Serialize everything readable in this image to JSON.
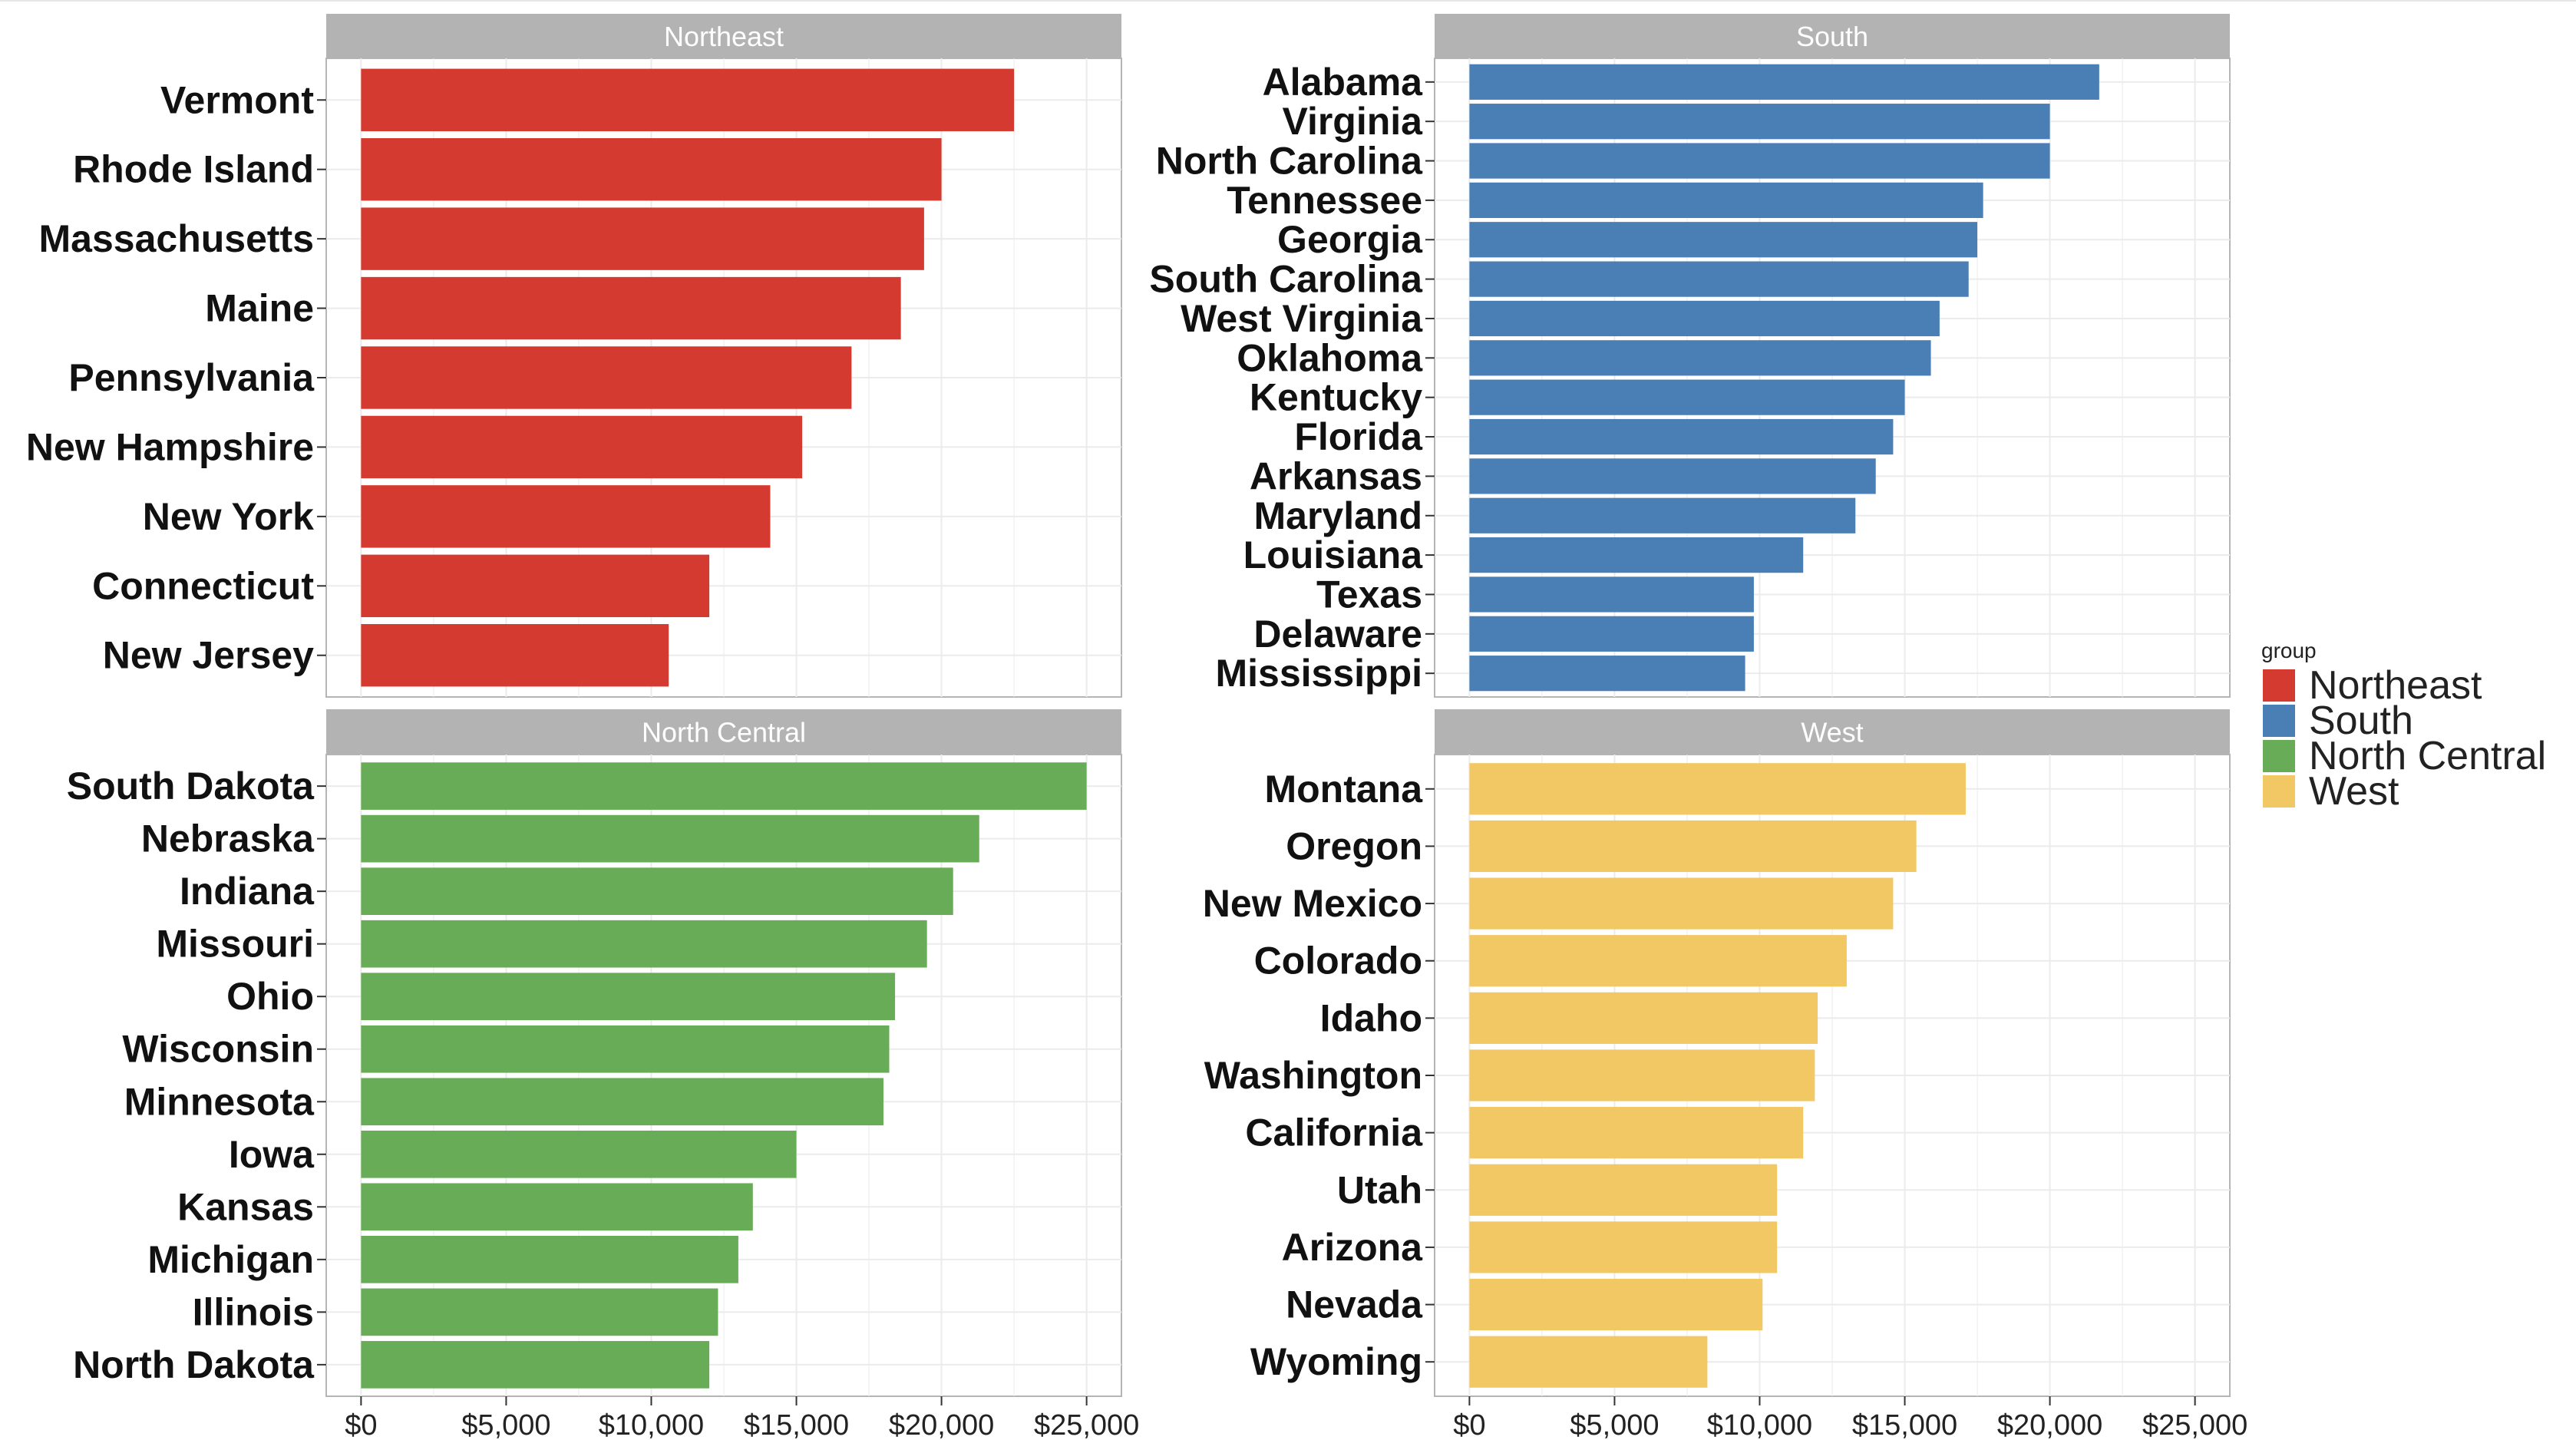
{
  "chart_data": {
    "type": "bar",
    "orientation": "horizontal",
    "facets": [
      "Northeast",
      "South",
      "North Central",
      "West"
    ],
    "x_ticks": [
      "$0",
      "$5,000",
      "$10,000",
      "$15,000",
      "$20,000",
      "$25,000"
    ],
    "x_tick_values": [
      0,
      5000,
      10000,
      15000,
      20000,
      25000
    ],
    "xlim": [
      -1200,
      26200
    ],
    "grid": true,
    "legend": {
      "title": "group",
      "position": "right",
      "items": [
        {
          "label": "Northeast",
          "color": "#d43a2f"
        },
        {
          "label": "South",
          "color": "#4a7fb5"
        },
        {
          "label": "North Central",
          "color": "#68ac57"
        },
        {
          "label": "West",
          "color": "#f2c864"
        }
      ]
    },
    "panels": [
      {
        "title": "Northeast",
        "color": "#d43a2f",
        "categories": [
          "Vermont",
          "Rhode Island",
          "Massachusetts",
          "Maine",
          "Pennsylvania",
          "New Hampshire",
          "New York",
          "Connecticut",
          "New Jersey"
        ],
        "values": [
          22500,
          20000,
          19400,
          18600,
          16900,
          15200,
          14100,
          12000,
          10600
        ]
      },
      {
        "title": "South",
        "color": "#4a7fb5",
        "categories": [
          "Alabama",
          "Virginia",
          "North Carolina",
          "Tennessee",
          "Georgia",
          "South Carolina",
          "West Virginia",
          "Oklahoma",
          "Kentucky",
          "Florida",
          "Arkansas",
          "Maryland",
          "Louisiana",
          "Texas",
          "Delaware",
          "Mississippi"
        ],
        "values": [
          21700,
          20000,
          20000,
          17700,
          17500,
          17200,
          16200,
          15900,
          15000,
          14600,
          14000,
          13300,
          11500,
          9800,
          9800,
          9500
        ]
      },
      {
        "title": "North Central",
        "color": "#68ac57",
        "categories": [
          "South Dakota",
          "Nebraska",
          "Indiana",
          "Missouri",
          "Ohio",
          "Wisconsin",
          "Minnesota",
          "Iowa",
          "Kansas",
          "Michigan",
          "Illinois",
          "North Dakota"
        ],
        "values": [
          25000,
          21300,
          20400,
          19500,
          18400,
          18200,
          18000,
          15000,
          13500,
          13000,
          12300,
          12000
        ]
      },
      {
        "title": "West",
        "color": "#f2c864",
        "categories": [
          "Montana",
          "Oregon",
          "New Mexico",
          "Colorado",
          "Idaho",
          "Washington",
          "California",
          "Utah",
          "Arizona",
          "Nevada",
          "Wyoming"
        ],
        "values": [
          17100,
          15400,
          14600,
          13000,
          12000,
          11900,
          11500,
          10600,
          10600,
          10100,
          8200
        ]
      }
    ]
  }
}
